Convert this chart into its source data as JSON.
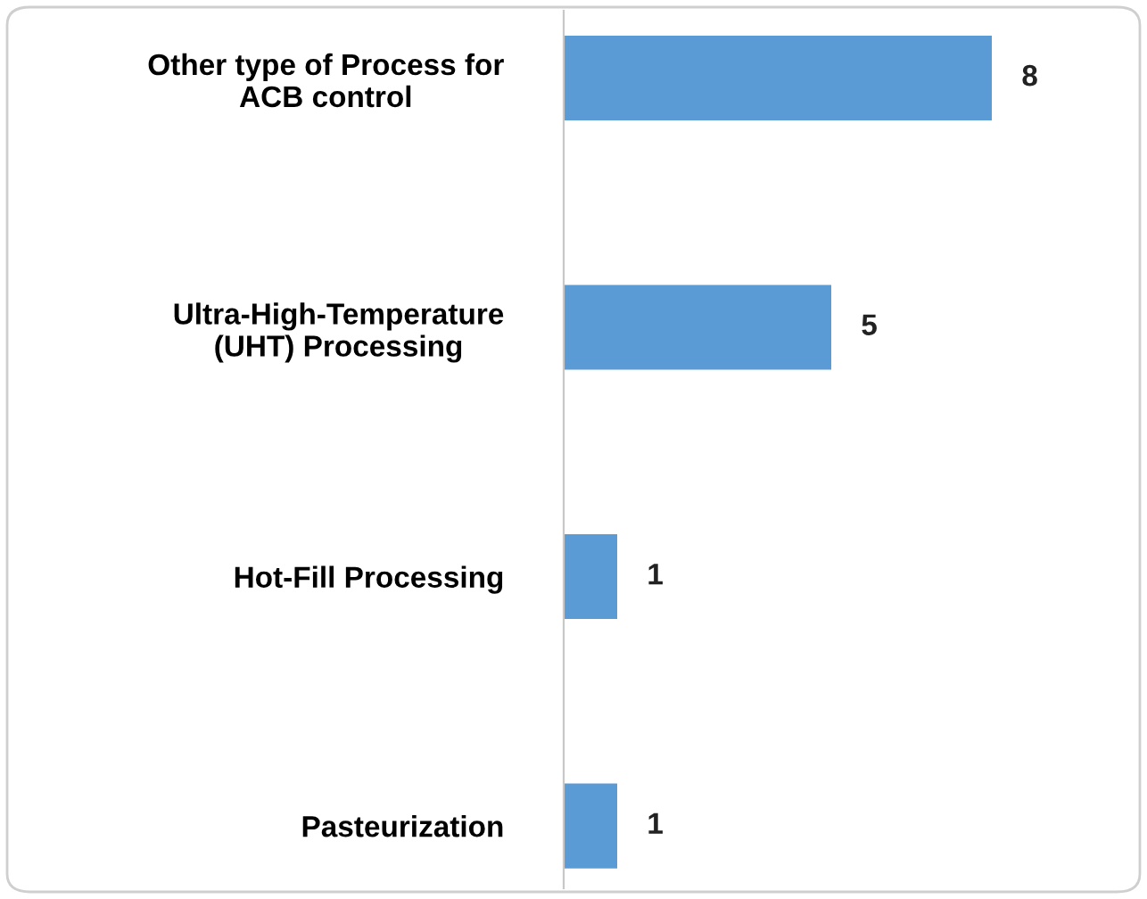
{
  "chart_data": {
    "type": "bar",
    "orientation": "horizontal",
    "categories": [
      "Other type of Process for\nACB control",
      "Ultra-High-Temperature\n(UHT) Processing",
      "Hot-Fill Processing",
      "Pasteurization"
    ],
    "values": [
      8,
      5,
      1,
      1
    ],
    "color": "#5b9bd5",
    "data_labels": true,
    "grid": false,
    "legend": false
  }
}
